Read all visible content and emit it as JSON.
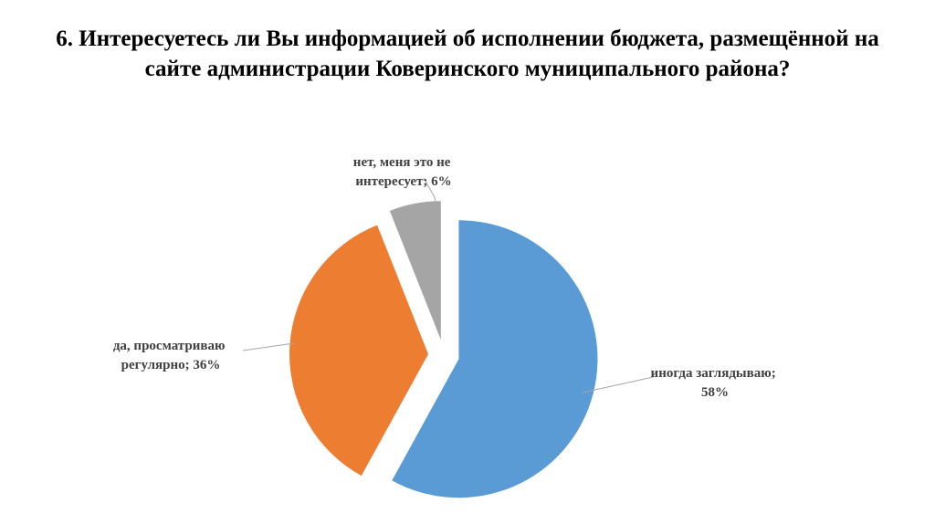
{
  "chart_data": {
    "type": "pie",
    "title_lines": [
      "6. Интересуетесь ли Вы информацией об исполнении бюджета, размещённой на",
      "сайте администрации Коверинского муниципального района?"
    ],
    "slices": [
      {
        "label_lines": [
          "иногда заглядываю;",
          "58%"
        ],
        "value": 58,
        "color": "#5B9BD5"
      },
      {
        "label_lines": [
          "да, просматриваю",
          "регулярно; 36%"
        ],
        "value": 36,
        "color": "#ED7D31"
      },
      {
        "label_lines": [
          "нет, меня это не",
          "интересует; 6%"
        ],
        "value": 6,
        "color": "#A5A5A5"
      }
    ],
    "legend": "none",
    "exploded": true
  }
}
